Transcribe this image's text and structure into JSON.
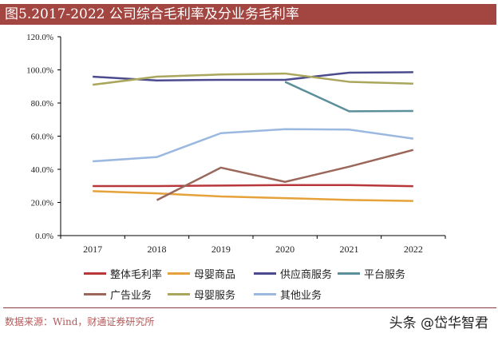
{
  "title": "图5.2017-2022 公司综合毛利率及分业务毛利率",
  "source": "数据来源：Wind，财通证券研究所",
  "watermark": "头条 @岱华智君",
  "chart_data": {
    "type": "line",
    "title": "图5.2017-2022 公司综合毛利率及分业务毛利率",
    "xlabel": "",
    "ylabel": "",
    "categories": [
      "2017",
      "2018",
      "2019",
      "2020",
      "2021",
      "2022"
    ],
    "ylim": [
      0,
      120
    ],
    "yticks": [
      "0.0%",
      "20.0%",
      "40.0%",
      "60.0%",
      "80.0%",
      "100.0%",
      "120.0%"
    ],
    "grid": false,
    "legend": "bottom",
    "series": [
      {
        "name": "整体毛利率",
        "color": "#b8373a",
        "values": [
          29.9,
          29.9,
          30.2,
          30.5,
          30.5,
          29.8
        ]
      },
      {
        "name": "母婴商品",
        "color": "#e6a23a",
        "values": [
          26.8,
          25.5,
          23.6,
          22.6,
          21.5,
          20.9
        ]
      },
      {
        "name": "供应商服务",
        "color": "#4b4a8f",
        "values": [
          95.9,
          93.6,
          94.0,
          94.0,
          98.3,
          98.6
        ]
      },
      {
        "name": "平台服务",
        "color": "#5b8f99",
        "values": [
          null,
          null,
          null,
          92.8,
          75.0,
          75.2
        ]
      },
      {
        "name": "广告业务",
        "color": "#9a675a",
        "values": [
          null,
          21.4,
          41.0,
          32.4,
          41.6,
          51.7
        ]
      },
      {
        "name": "母婴服务",
        "color": "#aaa65c",
        "values": [
          91.0,
          95.9,
          97.2,
          97.8,
          92.8,
          91.7
        ]
      },
      {
        "name": "其他业务",
        "color": "#9bb8e0",
        "values": [
          44.8,
          47.4,
          61.8,
          64.2,
          64.0,
          58.5
        ]
      }
    ]
  }
}
